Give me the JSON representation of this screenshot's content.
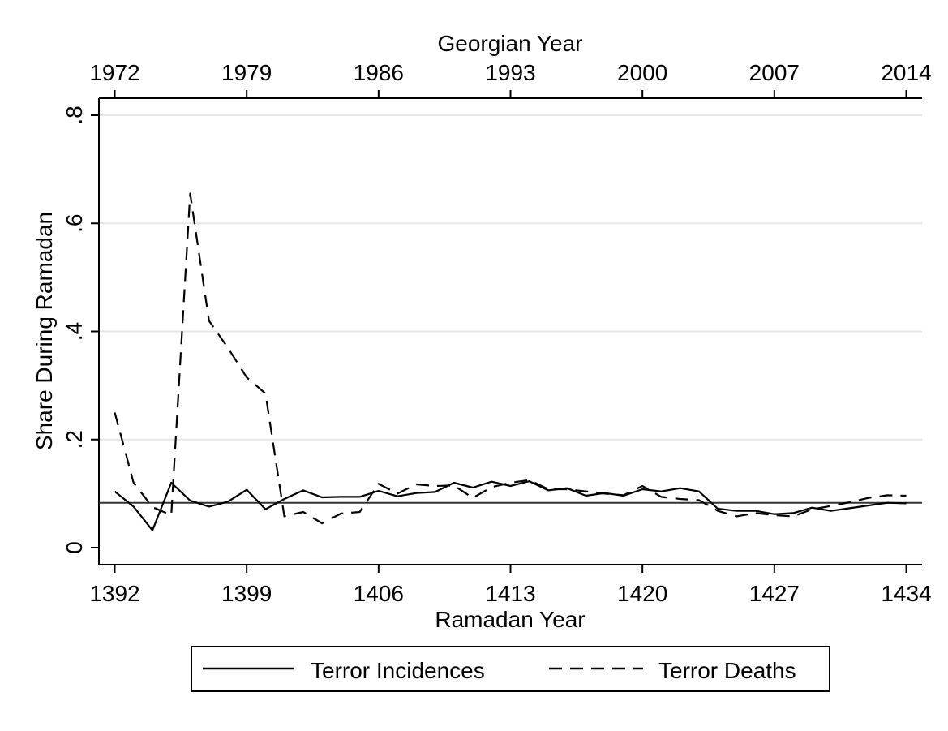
{
  "chart_data": {
    "type": "line",
    "title": "",
    "xlabel": "Ramadan Year",
    "ylabel": "Share During Ramadan",
    "top_axis_label": "Georgian Year",
    "xlim": [
      1392,
      1434
    ],
    "ylim": [
      0,
      0.8
    ],
    "x_ticks": [
      1392,
      1399,
      1406,
      1413,
      1420,
      1427,
      1434
    ],
    "x_tick_labels": [
      "1392",
      "1399",
      "1406",
      "1413",
      "1420",
      "1427",
      "1434"
    ],
    "top_ticks": [
      1392,
      1399,
      1406,
      1413,
      1420,
      1427,
      1434
    ],
    "top_tick_labels": [
      "1972",
      "1979",
      "1986",
      "1993",
      "2000",
      "2007",
      "2014"
    ],
    "y_ticks": [
      0,
      0.2,
      0.4,
      0.6,
      0.8
    ],
    "y_tick_labels": [
      "0",
      ".2",
      ".4",
      ".6",
      ".8"
    ],
    "grid": true,
    "reference_line": 0.083,
    "legend_position": "bottom",
    "x": [
      1392,
      1393,
      1394,
      1395,
      1396,
      1397,
      1398,
      1399,
      1400,
      1401,
      1402,
      1403,
      1404,
      1405,
      1406,
      1407,
      1408,
      1409,
      1410,
      1411,
      1412,
      1413,
      1414,
      1415,
      1416,
      1417,
      1418,
      1419,
      1420,
      1421,
      1422,
      1423,
      1424,
      1425,
      1426,
      1427,
      1428,
      1429,
      1430,
      1431,
      1432,
      1433,
      1434
    ],
    "series": [
      {
        "name": "Terror Incidences",
        "style": "solid",
        "values": [
          0.104,
          0.076,
          0.032,
          0.12,
          0.087,
          0.076,
          0.085,
          0.107,
          0.071,
          0.09,
          0.106,
          0.093,
          0.094,
          0.094,
          0.105,
          0.095,
          0.101,
          0.103,
          0.12,
          0.111,
          0.122,
          0.114,
          0.123,
          0.106,
          0.11,
          0.096,
          0.101,
          0.096,
          0.108,
          0.104,
          0.11,
          0.104,
          0.072,
          0.068,
          0.068,
          0.062,
          0.064,
          0.074,
          0.068,
          0.073,
          0.078,
          0.083,
          0.082
        ]
      },
      {
        "name": "Terror Deaths",
        "style": "dashed",
        "values": [
          0.25,
          0.12,
          0.075,
          0.06,
          0.655,
          0.42,
          0.37,
          0.315,
          0.285,
          0.058,
          0.066,
          0.045,
          0.063,
          0.066,
          0.118,
          0.1,
          0.117,
          0.114,
          0.115,
          0.092,
          0.112,
          0.12,
          0.125,
          0.108,
          0.108,
          0.104,
          0.1,
          0.097,
          0.114,
          0.094,
          0.09,
          0.088,
          0.068,
          0.058,
          0.064,
          0.06,
          0.058,
          0.071,
          0.077,
          0.084,
          0.092,
          0.097,
          0.096
        ]
      }
    ]
  }
}
